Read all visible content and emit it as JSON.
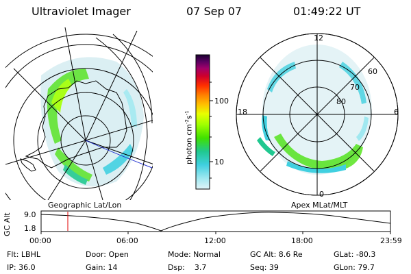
{
  "header": {
    "instrument": "Ultraviolet Imager",
    "date": "07 Sep 07",
    "time": "01:49:22 UT"
  },
  "colorbar": {
    "unit_label": "photon cm",
    "unit_exp1": "-2",
    "unit_mid": "s",
    "unit_exp2": "-1",
    "tick_100": "100",
    "tick_10": "10",
    "colors": [
      "#1a0030",
      "#5a0060",
      "#a0006a",
      "#d0002a",
      "#ff3000",
      "#ff8000",
      "#ffc000",
      "#e8ff00",
      "#a0ff00",
      "#40e000",
      "#20c890",
      "#40d0e0",
      "#a0e8f0",
      "#e0f4f8"
    ]
  },
  "left_map": {
    "caption": "Geographic Lat/Lon"
  },
  "right_map": {
    "caption": "Apex MLat/MLT",
    "mlt_top": "12",
    "mlt_left": "18",
    "mlt_right": "6",
    "mlt_bottom": "0",
    "lat_60": "60",
    "lat_70": "70",
    "lat_80": "80"
  },
  "alt_plot": {
    "ylabel": "GC Alt",
    "tick_hi": "9.0",
    "tick_lo": "1.8",
    "times": [
      "00:00",
      "06:00",
      "12:00",
      "18:00",
      "23:59"
    ]
  },
  "status": {
    "flt": "Flt: LBHL",
    "door": "Door: Open",
    "mode": "Mode: Normal",
    "gcalt": "GC Alt: 8.6 Re",
    "glat": "GLat: -80.3",
    "ip": "IP: 36.0",
    "gain": "Gain: 14",
    "dsp": "Dsp:    3.7",
    "seq": "Seq: 39",
    "glon": "GLon: 79.7"
  }
}
